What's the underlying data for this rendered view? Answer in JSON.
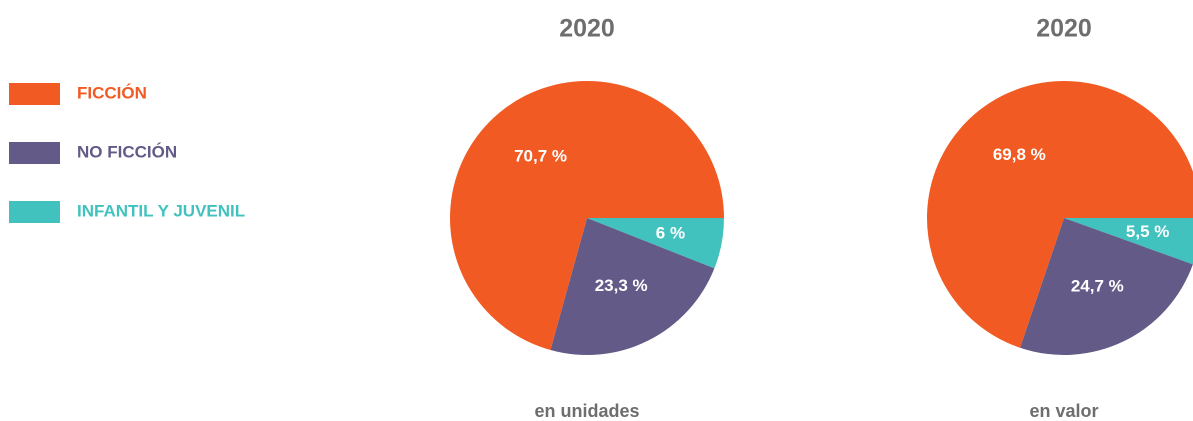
{
  "legend": {
    "labels": [
      "FICCIÓN",
      "NO FICCIÓN",
      "INFANTIL Y JUVENIL"
    ],
    "colors": [
      "#f15a22",
      "#635a87",
      "#42c2bf"
    ]
  },
  "chart_data": [
    {
      "type": "pie",
      "title": "2020",
      "subtitle": "en unidades",
      "values": [
        70.7,
        23.3,
        6
      ],
      "value_labels": [
        "70,7 %",
        "23,3 %",
        "6 %"
      ]
    },
    {
      "type": "pie",
      "title": "2020",
      "subtitle": "en valor",
      "values": [
        69.8,
        24.7,
        5.5
      ],
      "value_labels": [
        "69,8 %",
        "24,7 %",
        "5,5 %"
      ]
    }
  ]
}
